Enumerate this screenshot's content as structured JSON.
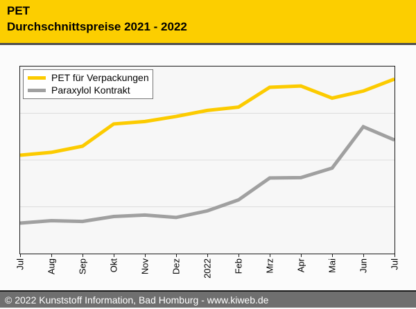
{
  "header": {
    "title_line1": "PET",
    "title_line2": "Durchschnittspreise 2021 - 2022",
    "background_color": "#FCCE00"
  },
  "chart_data": {
    "type": "line",
    "title": "PET Durchschnittspreise 2021 - 2022",
    "categories": [
      "Jul",
      "Aug",
      "Sep",
      "Okt",
      "Nov",
      "Dez",
      "2022",
      "Feb",
      "Mrz",
      "Apr",
      "Mai",
      "Jun",
      "Jul"
    ],
    "series": [
      {
        "name": "PET für Verpackungen",
        "color": "#FCCB00",
        "y_pct_from_plot_top": [
          47.4,
          45.9,
          42.6,
          30.7,
          29.4,
          26.7,
          23.5,
          21.7,
          11.1,
          10.4,
          16.9,
          13.1,
          6.7
        ]
      },
      {
        "name": "Paraxylol Kontrakt",
        "color": "#A0A0A0",
        "y_pct_from_plot_top": [
          83.7,
          82.4,
          82.8,
          80.2,
          79.4,
          80.7,
          77.2,
          71.3,
          59.6,
          59.4,
          54.3,
          32.2,
          39.3
        ]
      }
    ],
    "y_axis_labels_visible": false,
    "gridlines_pct_from_top": [
      25,
      50,
      75
    ],
    "gridline_color": "#DCDCDC",
    "legend_position": "top-left",
    "grid": "horizontal-only"
  },
  "footer": {
    "text": "© 2022 Kunststoff Information, Bad Homburg - www.kiweb.de",
    "background_color": "#6F6F6F",
    "text_color": "#FFFFFF"
  }
}
